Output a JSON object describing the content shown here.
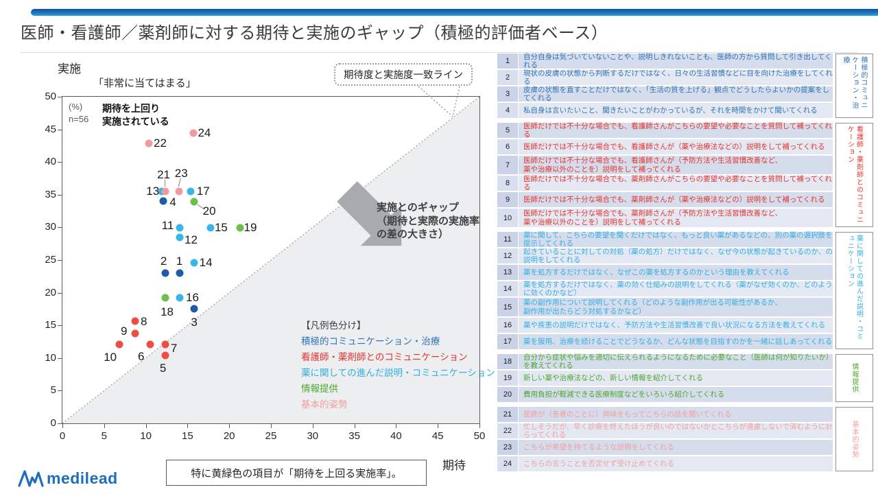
{
  "title": "医師・看護師／薬剤師に対する期待と実施のギャップ（積極的評価者ベース）",
  "chart": {
    "y_axis_title": "実施",
    "y_axis_subtitle": "「非常に当てはまる」",
    "x_axis_title": "期待",
    "pct_n": "(%)\nn=56",
    "upper_note": "期待を上回り\n実施されている",
    "gap_arrow_text": "実施とのギャップ\n（期待と実際の実施率\nの差の大きさ）",
    "callout": "期待度と実施度一致ライン"
  },
  "chart_data": {
    "type": "scatter",
    "xlabel": "期待",
    "ylabel": "実施",
    "xlim": [
      0,
      50
    ],
    "ylim": [
      0,
      50
    ],
    "x_ticks": [
      0,
      5,
      10,
      15,
      20,
      25,
      30,
      35,
      40,
      45,
      50
    ],
    "y_ticks": [
      0,
      5,
      10,
      15,
      20,
      25,
      30,
      35,
      40,
      45,
      50
    ],
    "identity_line": true,
    "categories": {
      "active": {
        "label": "積極的コミュニケーション・治療",
        "dot": "#1E5CA8",
        "text": "#2E74B5"
      },
      "nurse": {
        "label": "看護師・薬剤師とのコミュニケーション",
        "dot": "#F04C44",
        "text": "#E5332B"
      },
      "medicine": {
        "label": "薬に関しての進んだ説明・コミュニケーション",
        "dot": "#38B6E8",
        "text": "#31AEE3"
      },
      "info": {
        "label": "情報提供",
        "dot": "#6CBF4B",
        "text": "#4EA72E"
      },
      "attitude": {
        "label": "基本的姿勢",
        "dot": "#F09BA1",
        "text": "#F2A09E"
      }
    },
    "points": [
      {
        "id": 1,
        "x": 14.1,
        "y": 23.0,
        "category": "active"
      },
      {
        "id": 2,
        "x": 12.3,
        "y": 23.0,
        "category": "active"
      },
      {
        "id": 3,
        "x": 15.8,
        "y": 17.5,
        "category": "active"
      },
      {
        "id": 4,
        "x": 12.1,
        "y": 34.0,
        "category": "active"
      },
      {
        "id": 5,
        "x": 12.3,
        "y": 10.4,
        "category": "nurse"
      },
      {
        "id": 6,
        "x": 10.5,
        "y": 12.1,
        "category": "nurse"
      },
      {
        "id": 7,
        "x": 12.3,
        "y": 12.1,
        "category": "nurse"
      },
      {
        "id": 8,
        "x": 8.7,
        "y": 15.6,
        "category": "nurse"
      },
      {
        "id": 9,
        "x": 8.7,
        "y": 13.8,
        "category": "nurse"
      },
      {
        "id": 10,
        "x": 6.8,
        "y": 12.1,
        "category": "nurse"
      },
      {
        "id": 11,
        "x": 14.1,
        "y": 29.9,
        "category": "medicine"
      },
      {
        "id": 12,
        "x": 14.1,
        "y": 28.5,
        "category": "medicine"
      },
      {
        "id": 13,
        "x": 11.9,
        "y": 35.5,
        "category": "medicine"
      },
      {
        "id": 14,
        "x": 15.8,
        "y": 24.6,
        "category": "medicine"
      },
      {
        "id": 15,
        "x": 17.8,
        "y": 29.9,
        "category": "medicine"
      },
      {
        "id": 16,
        "x": 14.1,
        "y": 19.2,
        "category": "medicine"
      },
      {
        "id": 17,
        "x": 15.4,
        "y": 35.5,
        "category": "medicine"
      },
      {
        "id": 18,
        "x": 12.3,
        "y": 19.2,
        "category": "info"
      },
      {
        "id": 19,
        "x": 21.3,
        "y": 29.9,
        "category": "info"
      },
      {
        "id": 20,
        "x": 15.8,
        "y": 33.9,
        "category": "info"
      },
      {
        "id": 21,
        "x": 12.3,
        "y": 35.5,
        "category": "attitude"
      },
      {
        "id": 22,
        "x": 10.4,
        "y": 42.9,
        "category": "attitude"
      },
      {
        "id": 23,
        "x": 14.0,
        "y": 35.5,
        "category": "attitude"
      },
      {
        "id": 24,
        "x": 15.7,
        "y": 44.4,
        "category": "attitude"
      }
    ]
  },
  "legend": {
    "title": "【凡例色分け】",
    "items": [
      "active",
      "nurse",
      "medicine",
      "info",
      "attitude"
    ]
  },
  "items": [
    {
      "id": 1,
      "category": "active",
      "text": "自分自身は気づいていないことや、説明しきれないことも、医師の方から質問して引き出してくれる"
    },
    {
      "id": 2,
      "category": "active",
      "text": "現状の皮膚の状態から判断するだけではなく、日々の生活習慣などに目を向けた治療をしてくれる"
    },
    {
      "id": 3,
      "category": "active",
      "text": "皮膚の状態を直すことだけではなく、「生活の質を上げる」観点でどうしたらよいかの提案をしてくれる"
    },
    {
      "id": 4,
      "category": "active",
      "text": "私自身は言いたいこと、聞きたいことがわかっているが、それを時間をかけて聞いてくれる"
    },
    {
      "id": 5,
      "category": "nurse",
      "text": "医師だけでは不十分な場合でも、看護師さんがこちらの要望や必要なことを質問して補ってくれる"
    },
    {
      "id": 6,
      "category": "nurse",
      "text": "医師だけでは不十分な場合でも、看護師さんが（薬や治療法などの）説明をして補ってくれる"
    },
    {
      "id": 7,
      "category": "nurse",
      "text": "医師だけでは不十分な場合でも、看護師さんが（予防方法や生活習慣改善など、\n薬や治療以外のことを）説明をして補ってくれる"
    },
    {
      "id": 8,
      "category": "nurse",
      "text": "医師だけでは不十分な場合でも、薬剤師さんがこちらの要望や必要なことを質問して補ってくれる"
    },
    {
      "id": 9,
      "category": "nurse",
      "text": "医師だけでは不十分な場合でも、薬剤師さんが（薬や治療法などの）説明をして補ってくれる"
    },
    {
      "id": 10,
      "category": "nurse",
      "text": "医師だけでは不十分な場合でも、薬剤師さんが（予防方法や生活習慣改善など、\n薬や治療以外のことを）説明をして補ってくれる"
    },
    {
      "id": 11,
      "category": "medicine",
      "text": "薬に関して、こちらの要望を聞くだけではなく、もっと良い薬があるなどの、別の薬の選択肢を提示してくれる"
    },
    {
      "id": 12,
      "category": "medicine",
      "text": "起きていることに対しての対処（薬の処方）だけではなく、なぜ今の状態が起きているのか、の説明をしてくれる"
    },
    {
      "id": 13,
      "category": "medicine",
      "text": "薬を処方するだけではなく、なぜこの薬を処方するのかという理由を教えてくれる"
    },
    {
      "id": 14,
      "category": "medicine",
      "text": "薬を処方するだけではなく、薬の効く仕組みの説明をしてくれる（薬がなぜ効くのか、どのように効くのかなど）"
    },
    {
      "id": 15,
      "category": "medicine",
      "text": "薬の副作用について説明してくれる（どのような副作用が出る可能性があるか、\n副作用が出たらどう対処するかなど）"
    },
    {
      "id": 16,
      "category": "medicine",
      "text": "薬や疾患の説明だけではなく、予防方法や生活習慣改善で良い状況になる方法を教えてくれる"
    },
    {
      "id": 17,
      "category": "medicine",
      "text": "薬を服用、治療を続けることでどうなるか、どんな状態を目指すのかを一緒に話しあってくれる"
    },
    {
      "id": 18,
      "category": "info",
      "text": "自分から症状や悩みを適切に伝えられるようになるために必要なこと（医師は何が知りたいか）を教えてくれる"
    },
    {
      "id": 19,
      "category": "info",
      "text": "新しい薬や治療法などの、新しい情報を紹介してくれる"
    },
    {
      "id": 20,
      "category": "info",
      "text": "費用負担が軽減できる医療制度などをいろいろ紹介してくれる"
    },
    {
      "id": 21,
      "category": "attitude",
      "text": "医師が（患者のことに）興味をもってこちらの話を聞いてくれる"
    },
    {
      "id": 22,
      "category": "attitude",
      "text": "忙しそうだが、早く診療を終えたほうが良いのではないかとこちらが遠慮しないで済むように計らってくれる"
    },
    {
      "id": 23,
      "category": "attitude",
      "text": "こちらが希望を持てるような説明をしてくれる"
    },
    {
      "id": 24,
      "category": "attitude",
      "text": "こちらの言うことを否定せず受け止めてくれる"
    }
  ],
  "side_categories": [
    {
      "category": "active",
      "from": 1,
      "to": 4
    },
    {
      "category": "nurse",
      "from": 5,
      "to": 10
    },
    {
      "category": "medicine",
      "from": 11,
      "to": 17
    },
    {
      "category": "info",
      "from": 18,
      "to": 20
    },
    {
      "category": "attitude",
      "from": 21,
      "to": 24
    }
  ],
  "footer": {
    "note": "特に黄緑色の項目が「期待を上回る実施率」。",
    "logo_text": "medilead"
  }
}
